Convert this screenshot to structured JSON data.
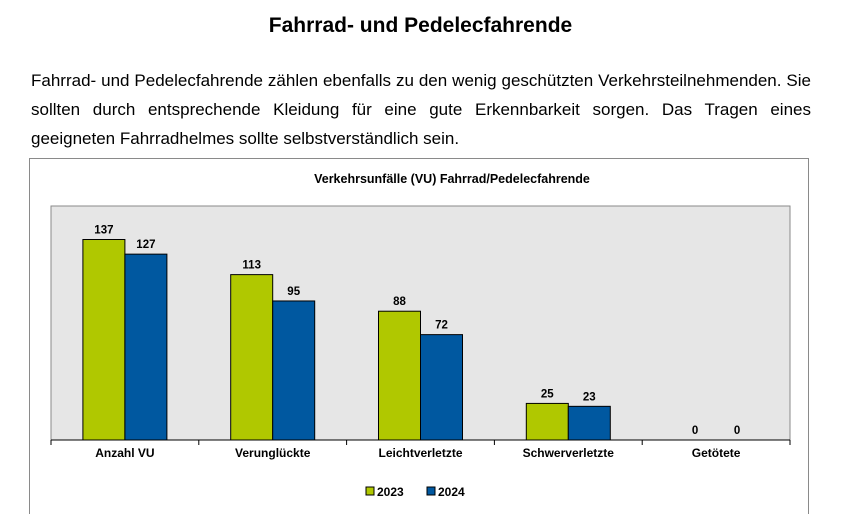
{
  "heading": "Fahrrad- und Pedelecfahrende",
  "paragraph": "Fahrrad- und Pedelecfahrende zählen ebenfalls zu den wenig geschützten Verkehrsteilnehmenden. Sie sollten durch entsprechende Kleidung für eine gute Erkennbarkeit sorgen. Das Tragen eines geeigneten Fahrradhelmes sollte selbstverständlich sein.",
  "chart_data": {
    "type": "bar",
    "title": "Verkehrsunfälle (VU) Fahrrad/Pedelecfahrende",
    "categories": [
      "Anzahl VU",
      "Verunglückte",
      "Leichtverletzte",
      "Schwerverletzte",
      "Getötete"
    ],
    "series": [
      {
        "name": "2023",
        "values": [
          137,
          113,
          88,
          25,
          0
        ],
        "color": "#b0c800"
      },
      {
        "name": "2024",
        "values": [
          127,
          95,
          72,
          23,
          0
        ],
        "color": "#0058a0"
      }
    ],
    "ylim": [
      0,
      160
    ],
    "grid": false,
    "legend": "bottom",
    "plot_background": "#e6e6e6"
  }
}
